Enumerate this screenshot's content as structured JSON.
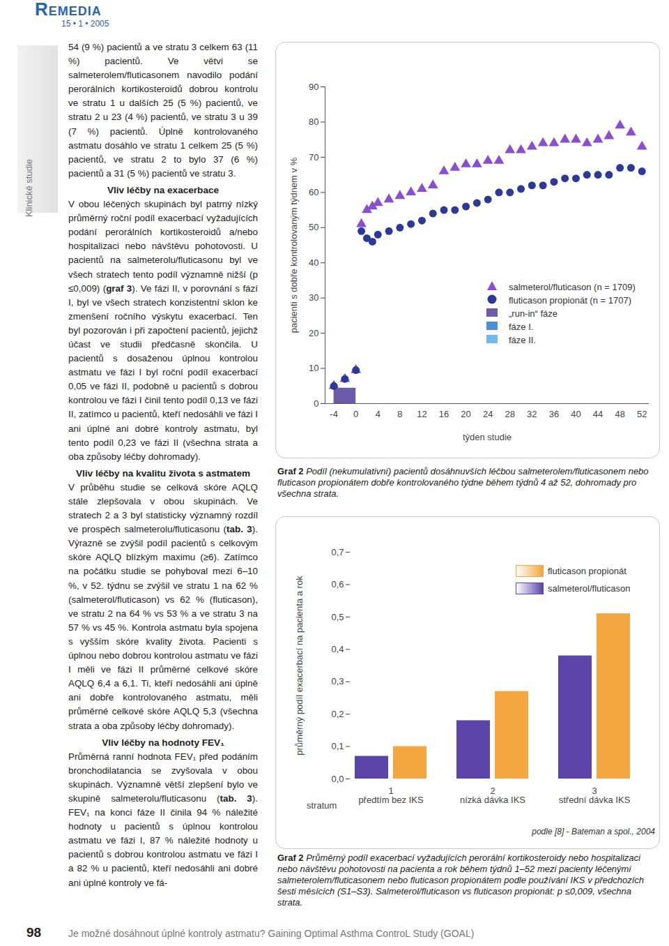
{
  "header": {
    "logo": "Remedia",
    "issue": "15 • 1 • 2005"
  },
  "sidebar": {
    "section": "Klinické studie"
  },
  "body": [
    {
      "type": "p",
      "parts": [
        "54 (9 %) pacientů a ve stratu 3 celkem 63 (11 %) pacientů. Ve větvi se salmeterolem/fluticasonem navodilo podání perorálních kortikosteroidů dobrou kontrolu ve stratu 1 u dalších 25 (5 %) pacientů, ve stratu 2 u 23 (4 %) pacientů, ve stratu 3 u 39 (7 %) pacientů. Úplně kontrolovaného astmatu dosáhlo ve stratu 1 celkem 25 (5 %) pacientů, ve stratu 2 to bylo 37 (6 %) pacientů a 31 (5 %) pacientů ve stratu 3."
      ]
    },
    {
      "type": "h",
      "text": "Vliv léčby na exacerbace"
    },
    {
      "type": "p",
      "parts": [
        "V obou léčených skupinách byl patrný nízký průměrný roční podíl exacerbací vyžadujících podání perorálních kortikosteroidů a/nebo hospitalizaci nebo návštěvu pohotovosti. U pacientů na salmeterolu/fluticasonu byl ve všech stratech tento podíl významně nižší (p ≤0,009) (",
        {
          "bold": "graf 3"
        },
        "). Ve fázi II, v porovnání s fází I, byl ve všech stratech konzistentní sklon ke zmenšení ročního výskytu exacerbací. Ten byl pozorován i při započtení pacientů, jejichž účast ve studii předčasně skončila. U pacientů s dosaženou úplnou kontrolou astmatu ve fázi I byl roční podíl exacerbací 0,05 ve fázi II, podobně u pacientů s dobrou kontrolou ve fázi I činil tento podíl 0,13 ve fázi II, zatímco u pacientů, kteří nedosáhli ve fázi I ani úplné ani dobré kontroly astmatu, byl tento podíl 0,23 ve fázi II (všechna strata a oba způsoby léčby dohromady)."
      ]
    },
    {
      "type": "h",
      "text": "Vliv léčby na kvalitu života s astmatem"
    },
    {
      "type": "p",
      "parts": [
        "V průběhu studie se celková skóre AQLQ stále zlepšovala v obou skupinách. Ve stratech 2 a 3 byl statisticky významný rozdíl ve prospěch salmeterolu/fluticasonu (",
        {
          "bold": "tab. 3"
        },
        "). Výrazně se zvýšil podíl pacientů s celkovým skóre AQLQ blízkým maximu (≥6). Zatímco na počátku studie se pohyboval mezi 6–10 %, v 52. týdnu se zvýšil ve stratu 1 na 62 % (salmeterol/fluticason) vs 62 % (fluticason), ve stratu 2 na 64 % vs 53 % a ve stratu 3 na 57 % vs 45 %. Kontrola astmatu byla spojena s vyšším skóre kvality života. Pacienti s úplnou nebo dobrou kontrolou astmatu ve fázi I měli ve fázi II průměrné celkové skóre AQLQ 6,4 a 6,1. Ti, kteří nedosáhli ani úplně ani dobře kontrolovaného astmatu, měli průměrné celkové skóre AQLQ 5,3 (všechna strata a oba způsoby léčby dohromady)."
      ]
    },
    {
      "type": "h",
      "text": "Vliv léčby na hodnoty FEV₁"
    },
    {
      "type": "p",
      "parts": [
        "Průměrná ranní hodnota FEV₁ před podáním bronchodilatancia se zvyšovala v obou skupinách. Významně větší zlepšení bylo ve skupině salmeterolu/fluticasonu (",
        {
          "bold": "tab. 3"
        },
        "). FEV₁ na konci fáze II činila 94 % náležité hodnoty u pacientů s úplnou kontrolou astmatu ve fázi I, 87 % náležité hodnoty u pacientů s dobrou kontrolou astmatu ve fázi I a 82 % u pacientů, kteří nedosáhli ani dobré ani úplné kontroly ve fá-"
      ]
    }
  ],
  "chart_data": [
    {
      "type": "scatter",
      "x_label": "týden studie",
      "y_label": "pacienti s dobře kontrolovaným týdnem v %",
      "x": [
        -4,
        -2,
        0,
        1,
        2,
        3,
        4,
        6,
        8,
        10,
        12,
        14,
        16,
        18,
        20,
        22,
        24,
        26,
        28,
        30,
        32,
        34,
        36,
        38,
        40,
        42,
        44,
        46,
        48,
        50,
        52
      ],
      "xlim": [
        -5.6,
        53.3
      ],
      "xticks": [
        -4,
        0,
        4,
        8,
        12,
        16,
        20,
        24,
        28,
        32,
        36,
        40,
        44,
        48,
        52
      ],
      "ylim": [
        0,
        90
      ],
      "yticks": [
        0,
        10,
        20,
        30,
        40,
        50,
        60,
        70,
        80,
        90
      ],
      "series": [
        {
          "name": "salmeterol/fluticason (n = 1709)",
          "color": "#8a4fcf",
          "marker": "triangle",
          "values": [
            5,
            7,
            9.5,
            51,
            55,
            56,
            57,
            58,
            59,
            60,
            61,
            62,
            66,
            67,
            68,
            68,
            69,
            69,
            72,
            72,
            73,
            74,
            74,
            75,
            75,
            74,
            75,
            76,
            79,
            77,
            73
          ]
        },
        {
          "name": "fluticason propionát (n = 1707)",
          "color": "#2a3a96",
          "marker": "circle",
          "values": [
            5,
            7,
            9.5,
            49,
            47,
            46,
            48,
            49,
            50,
            51,
            52,
            54,
            55,
            55,
            56,
            57,
            58,
            60,
            60,
            61,
            62,
            62,
            63,
            64,
            64,
            65,
            65,
            65,
            67,
            67,
            66
          ]
        }
      ],
      "phases": [
        {
          "name": "„run-in“ fáze",
          "color": "#6a5ca8",
          "x": [
            -4,
            0
          ],
          "y": [
            0,
            4.4
          ]
        },
        {
          "name": "fáze I.",
          "color": "#4a8fd8"
        },
        {
          "name": "fáze II.",
          "color": "#72b9ec"
        }
      ],
      "caption": {
        "label": "Graf 2",
        "text": "Podíl (nekumulativní) pacientů dosáhnuvších léčbou salmeterolem/fluticasonem nebo fluticason propionátem dobře kontrolovaného týdne během týdnů 4 až 52, dohromady pro všechna strata."
      }
    },
    {
      "type": "bar",
      "x_label": "stratum",
      "y_label": "průměrný podíl exacerbací na pacienta a rok",
      "categories": [
        "1",
        "2",
        "3"
      ],
      "category_labels": [
        "předtím bez IKS",
        "nízká dávka IKS",
        "střední dávka IKS"
      ],
      "ylim": [
        0,
        0.7
      ],
      "yticks": [
        {
          "value": 0,
          "label": "0,0"
        },
        {
          "value": 0.1,
          "label": "0,1"
        },
        {
          "value": 0.2,
          "label": "0,2"
        },
        {
          "value": 0.3,
          "label": "0,3"
        },
        {
          "value": 0.4,
          "label": "0,4"
        },
        {
          "value": 0.5,
          "label": "0,5"
        },
        {
          "value": 0.6,
          "label": "0,6"
        },
        {
          "value": 0.7,
          "label": "0,7"
        }
      ],
      "series": [
        {
          "name": "salmeterol/fluticason",
          "color": "#5b45a8",
          "values": [
            0.07,
            0.18,
            0.38
          ]
        },
        {
          "name": "fluticason propionát",
          "color": "#f4a640",
          "values": [
            0.1,
            0.27,
            0.51
          ]
        }
      ],
      "source": "podle [8] - Bateman a spol., 2004",
      "caption": {
        "label": "Graf 2",
        "text": "Průměrný podíl exacerbací vyžadujících perorální kortikosteroidy nebo hospitalizaci nebo návštěvu pohotovosti na pacienta a rok během týdnů 1–52 mezi pacienty léčenými salmeterolem/fluticasonem nebo fluticason propionátem podle používání IKS v předchozích šesti měsících (S1–S3). Salmeterol/fluticason vs fluticason propionát: p ≤0,009, všechna strata."
      }
    }
  ],
  "footer": {
    "page": "98",
    "text": "Je možné dosáhnout úplné kontroly astmatu? Gaining Optimal Asthma ControL Study (GOAL)"
  }
}
